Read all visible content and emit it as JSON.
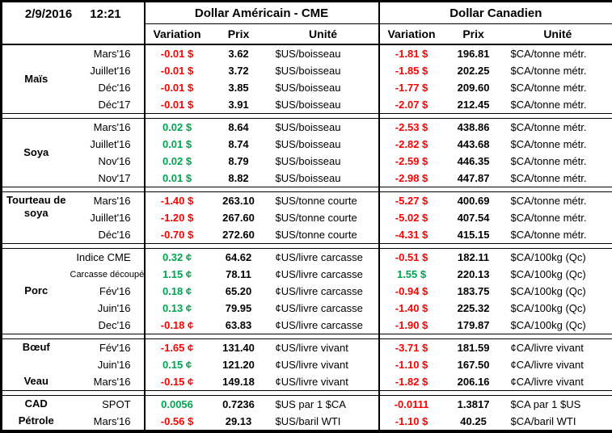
{
  "header": {
    "date": "2/9/2016",
    "time": "12:21",
    "us_title": "Dollar Américain - CME",
    "ca_title": "Dollar Canadien",
    "columns": {
      "variation": "Variation",
      "prix": "Prix",
      "unite": "Unité"
    }
  },
  "colors": {
    "positive": "#00a550",
    "negative": "#ff0000"
  },
  "blocks": [
    {
      "groups": [
        {
          "name": "Maïs",
          "rows": [
            {
              "label": "Mars'16",
              "us_var": "-0.01 $",
              "us_prix": "3.62",
              "us_unit": "$US/boisseau",
              "ca_var": "-1.81 $",
              "ca_prix": "196.81",
              "ca_unit": "$CA/tonne métr."
            },
            {
              "label": "Juillet'16",
              "us_var": "-0.01 $",
              "us_prix": "3.72",
              "us_unit": "$US/boisseau",
              "ca_var": "-1.85 $",
              "ca_prix": "202.25",
              "ca_unit": "$CA/tonne métr."
            },
            {
              "label": "Déc'16",
              "us_var": "-0.01 $",
              "us_prix": "3.85",
              "us_unit": "$US/boisseau",
              "ca_var": "-1.77 $",
              "ca_prix": "209.60",
              "ca_unit": "$CA/tonne métr."
            },
            {
              "label": "Déc'17",
              "us_var": "-0.01 $",
              "us_prix": "3.91",
              "us_unit": "$US/boisseau",
              "ca_var": "-2.07 $",
              "ca_prix": "212.45",
              "ca_unit": "$CA/tonne métr."
            }
          ]
        }
      ]
    },
    {
      "groups": [
        {
          "name": "Soya",
          "rows": [
            {
              "label": "Mars'16",
              "us_var": "0.02 $",
              "us_prix": "8.64",
              "us_unit": "$US/boisseau",
              "ca_var": "-2.53 $",
              "ca_prix": "438.86",
              "ca_unit": "$CA/tonne métr."
            },
            {
              "label": "Juillet'16",
              "us_var": "0.01 $",
              "us_prix": "8.74",
              "us_unit": "$US/boisseau",
              "ca_var": "-2.82 $",
              "ca_prix": "443.68",
              "ca_unit": "$CA/tonne métr."
            },
            {
              "label": "Nov'16",
              "us_var": "0.02 $",
              "us_prix": "8.79",
              "us_unit": "$US/boisseau",
              "ca_var": "-2.59 $",
              "ca_prix": "446.35",
              "ca_unit": "$CA/tonne métr."
            },
            {
              "label": "Nov'17",
              "us_var": "0.01 $",
              "us_prix": "8.82",
              "us_unit": "$US/boisseau",
              "ca_var": "-2.98 $",
              "ca_prix": "447.87",
              "ca_unit": "$CA/tonne métr."
            }
          ]
        }
      ]
    },
    {
      "groups": [
        {
          "name": "Tourteau de soya",
          "label_align": "top",
          "rows": [
            {
              "label": "Mars'16",
              "us_var": "-1.40 $",
              "us_prix": "263.10",
              "us_unit": "$US/tonne courte",
              "ca_var": "-5.27 $",
              "ca_prix": "400.69",
              "ca_unit": "$CA/tonne métr."
            },
            {
              "label": "Juillet'16",
              "us_var": "-1.20 $",
              "us_prix": "267.60",
              "us_unit": "$US/tonne courte",
              "ca_var": "-5.02 $",
              "ca_prix": "407.54",
              "ca_unit": "$CA/tonne métr."
            },
            {
              "label": "Déc'16",
              "us_var": "-0.70 $",
              "us_prix": "272.60",
              "us_unit": "$US/tonne courte",
              "ca_var": "-4.31 $",
              "ca_prix": "415.15",
              "ca_unit": "$CA/tonne métr."
            }
          ]
        }
      ]
    },
    {
      "groups": [
        {
          "name": "Porc",
          "rows": [
            {
              "label": "Indice CME",
              "us_var": "0.32 ¢",
              "us_prix": "64.62",
              "us_unit": "¢US/livre carcasse",
              "ca_var": "-0.51 $",
              "ca_prix": "182.11",
              "ca_unit": "$CA/100kg (Qc)"
            },
            {
              "label": "Carcasse découpée",
              "us_var": "1.15 ¢",
              "us_prix": "78.11",
              "us_unit": "¢US/livre carcasse",
              "ca_var": "1.55 $",
              "ca_prix": "220.13",
              "ca_unit": "$CA/100kg (Qc)"
            },
            {
              "label": "Fév'16",
              "us_var": "0.18 ¢",
              "us_prix": "65.20",
              "us_unit": "¢US/livre carcasse",
              "ca_var": "-0.94 $",
              "ca_prix": "183.75",
              "ca_unit": "$CA/100kg (Qc)"
            },
            {
              "label": "Juin'16",
              "us_var": "0.13 ¢",
              "us_prix": "79.95",
              "us_unit": "¢US/livre carcasse",
              "ca_var": "-1.40 $",
              "ca_prix": "225.32",
              "ca_unit": "$CA/100kg (Qc)"
            },
            {
              "label": "Dec'16",
              "us_var": "-0.18 ¢",
              "us_prix": "63.83",
              "us_unit": "¢US/livre carcasse",
              "ca_var": "-1.90 $",
              "ca_prix": "179.87",
              "ca_unit": "$CA/100kg (Qc)"
            }
          ]
        }
      ]
    },
    {
      "groups": [
        {
          "name": "Bœuf",
          "label_align": "top",
          "rows": [
            {
              "label": "Fév'16",
              "us_var": "-1.65 ¢",
              "us_prix": "131.40",
              "us_unit": "¢US/livre vivant",
              "ca_var": "-3.71 $",
              "ca_prix": "181.59",
              "ca_unit": "¢CA/livre vivant"
            },
            {
              "label": "Juin'16",
              "us_var": "0.15 ¢",
              "us_prix": "121.20",
              "us_unit": "¢US/livre vivant",
              "ca_var": "-1.10 $",
              "ca_prix": "167.50",
              "ca_unit": "¢CA/livre vivant"
            }
          ]
        },
        {
          "name": "Veau",
          "rows": [
            {
              "label": "Mars'16",
              "us_var": "-0.15 ¢",
              "us_prix": "149.18",
              "us_unit": "¢US/livre vivant",
              "ca_var": "-1.82 $",
              "ca_prix": "206.16",
              "ca_unit": "¢CA/livre vivant"
            }
          ]
        }
      ]
    },
    {
      "groups": [
        {
          "name": "CAD",
          "rows": [
            {
              "label": "SPOT",
              "us_var": "0.0056",
              "us_prix": "0.7236",
              "us_unit": "$US par 1 $CA",
              "ca_var": "-0.0111",
              "ca_prix": "1.3817",
              "ca_unit": "$CA par 1 $US"
            }
          ]
        },
        {
          "name": "Pétrole",
          "rows": [
            {
              "label": "Mars'16",
              "us_var": "-0.56 $",
              "us_prix": "29.13",
              "us_unit": "$US/baril WTI",
              "ca_var": "-1.10 $",
              "ca_prix": "40.25",
              "ca_unit": "$CA/baril WTI"
            }
          ]
        }
      ]
    }
  ]
}
